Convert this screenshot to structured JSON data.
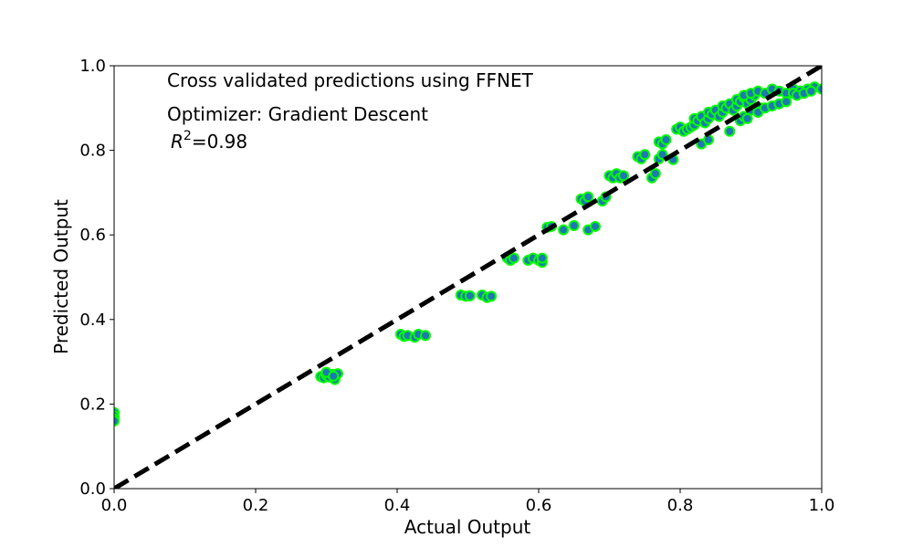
{
  "chart_data": {
    "type": "scatter",
    "title": "",
    "xlabel": "Actual Output",
    "ylabel": "Predicted Output",
    "xlim": [
      0,
      1
    ],
    "ylim": [
      0,
      1
    ],
    "xticks": [
      "0.0",
      "0.2",
      "0.4",
      "0.6",
      "0.8",
      "1.0"
    ],
    "yticks": [
      "0.0",
      "0.2",
      "0.4",
      "0.6",
      "0.8",
      "1.0"
    ],
    "grid": false,
    "annotations": {
      "line1": "Cross validated predictions using FFNET",
      "line2": "Optimizer: Gradient Descent",
      "r2_symbol": "R",
      "r2_exponent": "2",
      "r2_value": "=0.98"
    },
    "colors": {
      "marker_face": "#1f77b4",
      "marker_edge": "#00ff00",
      "reference_line": "#000000"
    },
    "reference_line": {
      "x": [
        0,
        1
      ],
      "y": [
        0,
        1
      ],
      "style": "dashed"
    },
    "series": [
      {
        "x": [
          0.0,
          0.0,
          0.0,
          0.0,
          0.292,
          0.296,
          0.3,
          0.304,
          0.308,
          0.312,
          0.316,
          0.3,
          0.31,
          0.405,
          0.41,
          0.415,
          0.425,
          0.43,
          0.44,
          0.49,
          0.497,
          0.503,
          0.52,
          0.527,
          0.533,
          0.556,
          0.56,
          0.565,
          0.585,
          0.592,
          0.6,
          0.605,
          0.605,
          0.612,
          0.618,
          0.635,
          0.65,
          0.66,
          0.665,
          0.67,
          0.67,
          0.68,
          0.69,
          0.695,
          0.7,
          0.705,
          0.71,
          0.715,
          0.72,
          0.74,
          0.745,
          0.75,
          0.76,
          0.765,
          0.77,
          0.775,
          0.77,
          0.775,
          0.78,
          0.79,
          0.795,
          0.8,
          0.805,
          0.81,
          0.815,
          0.82,
          0.83,
          0.84,
          0.82,
          0.825,
          0.83,
          0.835,
          0.84,
          0.84,
          0.845,
          0.85,
          0.855,
          0.86,
          0.865,
          0.87,
          0.86,
          0.865,
          0.87,
          0.875,
          0.88,
          0.885,
          0.89,
          0.895,
          0.88,
          0.885,
          0.89,
          0.895,
          0.9,
          0.905,
          0.91,
          0.915,
          0.89,
          0.9,
          0.91,
          0.92,
          0.93,
          0.94,
          0.95,
          0.96,
          0.9,
          0.91,
          0.92,
          0.93,
          0.94,
          0.95,
          0.96,
          0.97,
          0.98,
          0.99,
          1.0,
          0.965,
          0.975,
          0.985
        ],
        "y": [
          0.18,
          0.172,
          0.165,
          0.16,
          0.265,
          0.262,
          0.268,
          0.264,
          0.27,
          0.258,
          0.272,
          0.275,
          0.266,
          0.365,
          0.36,
          0.362,
          0.358,
          0.365,
          0.362,
          0.458,
          0.455,
          0.456,
          0.458,
          0.452,
          0.455,
          0.545,
          0.54,
          0.545,
          0.54,
          0.545,
          0.54,
          0.535,
          0.545,
          0.618,
          0.62,
          0.612,
          0.622,
          0.685,
          0.68,
          0.69,
          0.612,
          0.62,
          0.68,
          0.69,
          0.74,
          0.735,
          0.745,
          0.735,
          0.74,
          0.785,
          0.78,
          0.79,
          0.735,
          0.745,
          0.78,
          0.79,
          0.82,
          0.815,
          0.825,
          0.778,
          0.85,
          0.855,
          0.845,
          0.85,
          0.855,
          0.86,
          0.815,
          0.825,
          0.875,
          0.87,
          0.88,
          0.865,
          0.875,
          0.89,
          0.885,
          0.895,
          0.88,
          0.89,
          0.9,
          0.845,
          0.905,
          0.9,
          0.91,
          0.895,
          0.905,
          0.87,
          0.88,
          0.875,
          0.92,
          0.915,
          0.925,
          0.91,
          0.92,
          0.93,
          0.89,
          0.9,
          0.93,
          0.935,
          0.94,
          0.935,
          0.945,
          0.94,
          0.935,
          0.945,
          0.895,
          0.89,
          0.9,
          0.905,
          0.91,
          0.915,
          0.935,
          0.94,
          0.945,
          0.95,
          0.945,
          0.93,
          0.935,
          0.94
        ]
      }
    ]
  }
}
